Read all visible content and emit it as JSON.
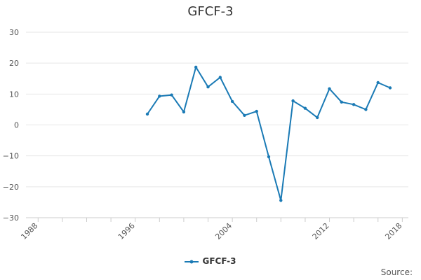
{
  "chart_data": {
    "type": "line",
    "title": "GFCF-3",
    "xlabel": "",
    "ylabel": "",
    "xlim": [
      1987,
      2018.5
    ],
    "ylim": [
      -30,
      30
    ],
    "y_ticks": [
      30,
      20,
      10,
      0,
      -10,
      -20,
      -30
    ],
    "y_tick_labels": [
      "30",
      "20",
      "10",
      "0",
      "−10",
      "−20",
      "−30"
    ],
    "x_tick_labels": [
      "1988",
      "1996",
      "2004",
      "2012",
      "2018"
    ],
    "x_ticks": [
      1988,
      1996,
      2004,
      2012,
      2018
    ],
    "x_minor_ticks": [
      1988,
      1990,
      1992,
      1994,
      1996,
      1998,
      2000,
      2002,
      2004,
      2006,
      2008,
      2010,
      2012,
      2014,
      2016,
      2018
    ],
    "grid": true,
    "legend_position": "bottom",
    "series": [
      {
        "name": "GFCF-3",
        "color": "#1a7ab5",
        "x": [
          1997,
          1998,
          1999,
          2000,
          2001,
          2002,
          2003,
          2004,
          2005,
          2006,
          2007,
          2008,
          2009,
          2010,
          2011,
          2012,
          2013,
          2014,
          2015,
          2016,
          2017,
          2018
        ],
        "y": [
          3.5,
          9.3,
          9.7,
          4.2,
          18.7,
          12.3,
          15.4,
          7.6,
          3.1,
          4.4,
          -10.3,
          -24.4,
          7.8,
          5.4,
          2.4,
          11.7,
          7.4,
          6.6,
          5.0,
          13.7,
          12.0,
          null
        ]
      }
    ],
    "source_label": "Source:"
  }
}
